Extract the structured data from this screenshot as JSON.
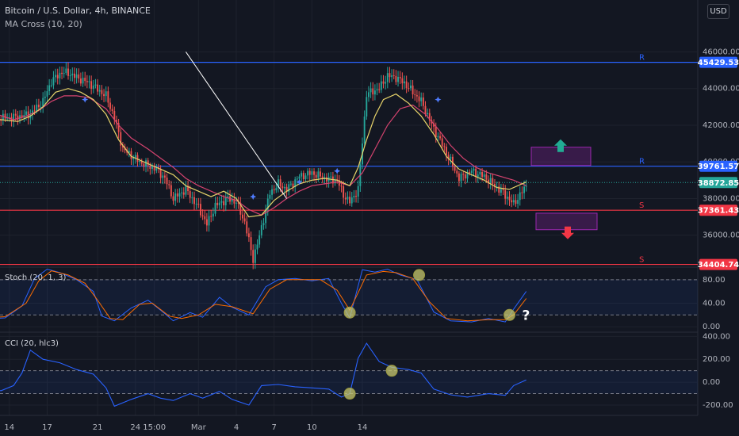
{
  "header": {
    "title": "Bitcoin / U.S. Dollar, 4h, BINANCE",
    "indicator": "MA Cross (10, 20)",
    "currency_button": "USD"
  },
  "colors": {
    "background": "#131722",
    "grid": "#1e222d",
    "candle_up": "#26a69a",
    "candle_down": "#ef5350",
    "ma_fast": "#e7d36a",
    "ma_slow": "#d5436f",
    "resistance": "#2962ff",
    "support": "#f23645",
    "trendline": "#ffffff",
    "stoch_k": "#2962ff",
    "stoch_d": "#ff6d00",
    "cci": "#2962ff",
    "marker": "#c8c86e"
  },
  "chart_data": [
    {
      "type": "candlestick",
      "xlabel": "",
      "ylabel": "",
      "x_ticks": [
        "14",
        "17",
        "21",
        "24",
        "15:00",
        "Mar",
        "4",
        "7",
        "10",
        "14"
      ],
      "y_ticks": [
        36000,
        38000,
        40000,
        42000,
        44000,
        46000
      ],
      "y_tick_labels": [
        "36000.00",
        "38000.00",
        "40000.00",
        "42000.00",
        "44000.00",
        "46000.00"
      ],
      "ylim": [
        34300,
        47100
      ],
      "price_labels": [
        {
          "text": "45429.53",
          "value": 45429.53,
          "kind": "resistance"
        },
        {
          "text": "39761.57",
          "value": 39761.57,
          "kind": "resistance"
        },
        {
          "text": "38872.85",
          "value": 38872.85,
          "kind": "last"
        },
        {
          "text": "37361.43",
          "value": 37361.43,
          "kind": "support"
        },
        {
          "text": "34404.74",
          "value": 34404.74,
          "kind": "support"
        }
      ],
      "levels": [
        {
          "value": 45429.53,
          "label": "R"
        },
        {
          "value": 39761.57,
          "label": "R"
        },
        {
          "value": 37361.43,
          "label": "S"
        },
        {
          "value": 34404.74,
          "label": "S"
        }
      ],
      "trendline": {
        "from": [
          "Feb 28",
          46000
        ],
        "to": [
          "Mar 8",
          38000
        ]
      },
      "boxes": [
        {
          "direction": "up",
          "range": [
            39800,
            40800
          ]
        },
        {
          "direction": "down",
          "range": [
            36300,
            37200
          ]
        }
      ],
      "price_path": [
        [
          0,
          42700
        ],
        [
          8,
          42400
        ],
        [
          16,
          42450
        ],
        [
          22,
          42600
        ],
        [
          28,
          43300
        ],
        [
          32,
          44400
        ],
        [
          37,
          44900
        ],
        [
          41,
          44800
        ],
        [
          44,
          44600
        ],
        [
          50,
          44300
        ],
        [
          58,
          43600
        ],
        [
          62,
          42400
        ],
        [
          66,
          40700
        ],
        [
          74,
          40000
        ],
        [
          82,
          39600
        ],
        [
          86,
          39100
        ],
        [
          90,
          38000
        ],
        [
          96,
          38500
        ],
        [
          102,
          37500
        ],
        [
          106,
          36600
        ],
        [
          110,
          37600
        ],
        [
          116,
          38000
        ],
        [
          120,
          37800
        ],
        [
          124,
          36700
        ],
        [
          128,
          34700
        ],
        [
          130,
          35500
        ],
        [
          136,
          38300
        ],
        [
          140,
          38800
        ],
        [
          144,
          38500
        ],
        [
          150,
          39200
        ],
        [
          156,
          39400
        ],
        [
          162,
          39100
        ],
        [
          168,
          39000
        ],
        [
          171,
          38200
        ],
        [
          174,
          37800
        ],
        [
          178,
          38500
        ],
        [
          182,
          43700
        ],
        [
          188,
          44000
        ],
        [
          192,
          44700
        ],
        [
          196,
          44600
        ],
        [
          200,
          44300
        ],
        [
          208,
          43300
        ],
        [
          214,
          41800
        ],
        [
          220,
          40500
        ],
        [
          226,
          39100
        ],
        [
          232,
          39500
        ],
        [
          238,
          39200
        ],
        [
          244,
          38600
        ],
        [
          247,
          38300
        ],
        [
          252,
          37700
        ],
        [
          258,
          38700
        ]
      ],
      "ma_fast_path": [
        [
          0,
          42400
        ],
        [
          8,
          42300
        ],
        [
          16,
          42200
        ],
        [
          22,
          42500
        ],
        [
          28,
          43000
        ],
        [
          34,
          43800
        ],
        [
          40,
          44000
        ],
        [
          46,
          43800
        ],
        [
          52,
          43400
        ],
        [
          58,
          42600
        ],
        [
          64,
          41200
        ],
        [
          70,
          40300
        ],
        [
          78,
          39900
        ],
        [
          84,
          39600
        ],
        [
          90,
          39300
        ],
        [
          96,
          38700
        ],
        [
          102,
          38400
        ],
        [
          108,
          38100
        ],
        [
          114,
          38400
        ],
        [
          120,
          38000
        ],
        [
          126,
          37000
        ],
        [
          132,
          37100
        ],
        [
          138,
          37900
        ],
        [
          144,
          38400
        ],
        [
          150,
          38800
        ],
        [
          156,
          39000
        ],
        [
          162,
          39100
        ],
        [
          168,
          39000
        ],
        [
          174,
          38700
        ],
        [
          178,
          39700
        ],
        [
          182,
          41200
        ],
        [
          186,
          42500
        ],
        [
          190,
          43400
        ],
        [
          196,
          43700
        ],
        [
          202,
          43200
        ],
        [
          208,
          42500
        ],
        [
          214,
          41500
        ],
        [
          220,
          40300
        ],
        [
          226,
          39600
        ],
        [
          232,
          39300
        ],
        [
          238,
          39000
        ],
        [
          244,
          38600
        ],
        [
          250,
          38500
        ],
        [
          258,
          38900
        ]
      ],
      "ma_slow_path": [
        [
          0,
          42700
        ],
        [
          6,
          42600
        ],
        [
          14,
          42300
        ],
        [
          20,
          42500
        ],
        [
          26,
          42800
        ],
        [
          32,
          43300
        ],
        [
          38,
          43600
        ],
        [
          44,
          43600
        ],
        [
          50,
          43500
        ],
        [
          58,
          42900
        ],
        [
          64,
          42000
        ],
        [
          70,
          41300
        ],
        [
          78,
          40700
        ],
        [
          84,
          40200
        ],
        [
          90,
          39700
        ],
        [
          96,
          39100
        ],
        [
          102,
          38700
        ],
        [
          108,
          38400
        ],
        [
          114,
          38100
        ],
        [
          120,
          37900
        ],
        [
          126,
          37400
        ],
        [
          132,
          37100
        ],
        [
          138,
          37500
        ],
        [
          144,
          38000
        ],
        [
          150,
          38400
        ],
        [
          156,
          38700
        ],
        [
          162,
          38800
        ],
        [
          168,
          38900
        ],
        [
          174,
          38700
        ],
        [
          180,
          39400
        ],
        [
          186,
          40700
        ],
        [
          192,
          42000
        ],
        [
          198,
          42900
        ],
        [
          204,
          43100
        ],
        [
          210,
          42600
        ],
        [
          216,
          41800
        ],
        [
          222,
          40900
        ],
        [
          228,
          40200
        ],
        [
          234,
          39700
        ],
        [
          240,
          39400
        ],
        [
          246,
          39200
        ],
        [
          252,
          39000
        ],
        [
          258,
          38700
        ]
      ],
      "cross_points": [
        [
          48,
          43400
        ],
        [
          128,
          38100
        ],
        [
          150,
          38900
        ],
        [
          168,
          39500
        ],
        [
          216,
          43400
        ]
      ]
    },
    {
      "type": "line",
      "title": "Stoch (20, 1, 3)",
      "xlabel": "",
      "ylabel": "",
      "y_ticks": [
        0,
        40,
        80
      ],
      "y_tick_labels": [
        "0.00",
        "40.00",
        "80.00"
      ],
      "ylim": [
        -8,
        100
      ],
      "band": [
        20,
        80
      ],
      "series": [
        {
          "color": "stoch_k",
          "points": [
            [
              0,
              13
            ],
            [
              10,
              15
            ],
            [
              18,
              35
            ],
            [
              24,
              82
            ],
            [
              30,
              98
            ],
            [
              36,
              92
            ],
            [
              44,
              80
            ],
            [
              52,
              60
            ],
            [
              56,
              18
            ],
            [
              62,
              10
            ],
            [
              70,
              32
            ],
            [
              78,
              45
            ],
            [
              84,
              28
            ],
            [
              90,
              10
            ],
            [
              98,
              24
            ],
            [
              104,
              16
            ],
            [
              112,
              50
            ],
            [
              118,
              33
            ],
            [
              126,
              20
            ],
            [
              134,
              68
            ],
            [
              140,
              80
            ],
            [
              148,
              82
            ],
            [
              156,
              78
            ],
            [
              164,
              82
            ],
            [
              170,
              40
            ],
            [
              174,
              15
            ],
            [
              180,
              97
            ],
            [
              186,
              93
            ],
            [
              192,
              98
            ],
            [
              198,
              88
            ],
            [
              206,
              80
            ],
            [
              214,
              25
            ],
            [
              222,
              10
            ],
            [
              232,
              8
            ],
            [
              240,
              14
            ],
            [
              248,
              8
            ],
            [
              252,
              30
            ],
            [
              258,
              60
            ]
          ]
        },
        {
          "color": "stoch_d",
          "points": [
            [
              0,
              15
            ],
            [
              10,
              17
            ],
            [
              20,
              40
            ],
            [
              26,
              78
            ],
            [
              32,
              95
            ],
            [
              40,
              88
            ],
            [
              48,
              74
            ],
            [
              54,
              45
            ],
            [
              60,
              14
            ],
            [
              66,
              12
            ],
            [
              74,
              38
            ],
            [
              80,
              40
            ],
            [
              88,
              18
            ],
            [
              94,
              14
            ],
            [
              102,
              20
            ],
            [
              110,
              38
            ],
            [
              118,
              34
            ],
            [
              128,
              22
            ],
            [
              136,
              64
            ],
            [
              144,
              80
            ],
            [
              152,
              80
            ],
            [
              160,
              80
            ],
            [
              168,
              62
            ],
            [
              174,
              28
            ],
            [
              182,
              88
            ],
            [
              190,
              94
            ],
            [
              196,
              92
            ],
            [
              204,
              82
            ],
            [
              212,
              42
            ],
            [
              220,
              14
            ],
            [
              230,
              10
            ],
            [
              240,
              12
            ],
            [
              248,
              12
            ],
            [
              252,
              20
            ],
            [
              258,
              48
            ]
          ]
        }
      ],
      "markers": [
        [
          174,
          24
        ],
        [
          207,
          88
        ],
        [
          250,
          20
        ]
      ],
      "annotation": "?"
    },
    {
      "type": "line",
      "title": "CCI (20, hlc3)",
      "xlabel": "",
      "ylabel": "",
      "y_ticks": [
        -200,
        0,
        200,
        400
      ],
      "y_tick_labels": [
        "-200.00",
        "0.00",
        "200.00",
        "400.00"
      ],
      "ylim": [
        -290,
        430
      ],
      "band": [
        -100,
        100
      ],
      "series": [
        {
          "color": "cci",
          "points": [
            [
              0,
              -45
            ],
            [
              8,
              -75
            ],
            [
              14,
              -30
            ],
            [
              18,
              80
            ],
            [
              22,
              280
            ],
            [
              28,
              200
            ],
            [
              36,
              170
            ],
            [
              44,
              110
            ],
            [
              52,
              70
            ],
            [
              58,
              -50
            ],
            [
              62,
              -210
            ],
            [
              70,
              -150
            ],
            [
              78,
              -100
            ],
            [
              84,
              -140
            ],
            [
              90,
              -160
            ],
            [
              98,
              -100
            ],
            [
              104,
              -140
            ],
            [
              112,
              -80
            ],
            [
              118,
              -150
            ],
            [
              126,
              -200
            ],
            [
              132,
              -30
            ],
            [
              140,
              -20
            ],
            [
              148,
              -40
            ],
            [
              156,
              -50
            ],
            [
              164,
              -60
            ],
            [
              170,
              -130
            ],
            [
              174,
              -100
            ],
            [
              178,
              210
            ],
            [
              182,
              340
            ],
            [
              188,
              180
            ],
            [
              194,
              130
            ],
            [
              202,
              110
            ],
            [
              208,
              80
            ],
            [
              214,
              -60
            ],
            [
              222,
              -110
            ],
            [
              230,
              -130
            ],
            [
              240,
              -100
            ],
            [
              248,
              -115
            ],
            [
              252,
              -30
            ],
            [
              258,
              20
            ]
          ]
        }
      ],
      "markers": [
        [
          174,
          -100
        ],
        [
          194,
          100
        ]
      ]
    }
  ]
}
